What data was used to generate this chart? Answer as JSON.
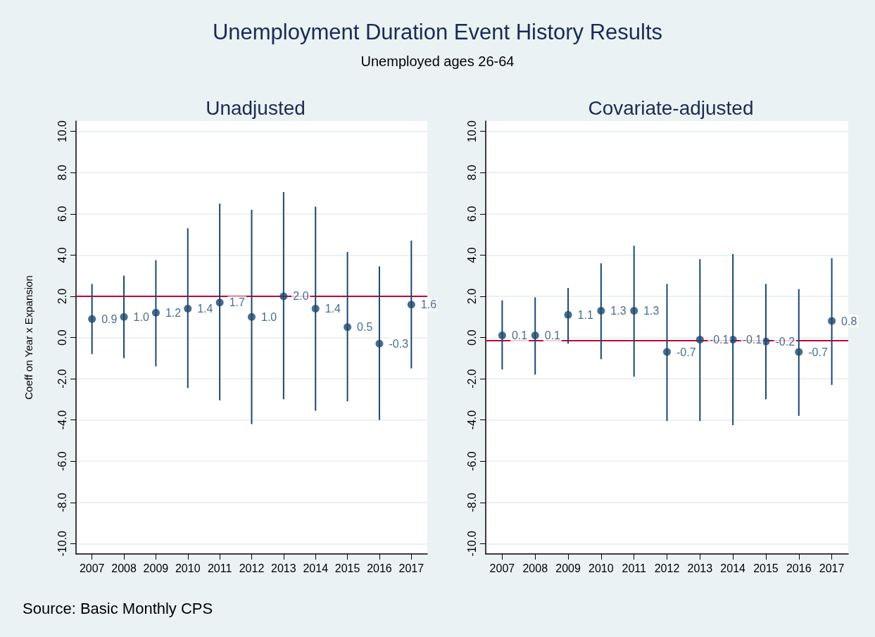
{
  "chart_data": [
    {
      "type": "scatter",
      "title": "Unadjusted",
      "ylabel": "Coeff on Year x Expansion",
      "annotations": [
        "Unemployment Duration Event History Results",
        "Unemployed ages 26-64",
        "Source: Basic Monthly CPS"
      ],
      "categories": [
        "2007",
        "2008",
        "2009",
        "2010",
        "2011",
        "2012",
        "2013",
        "2014",
        "2015",
        "2016",
        "2017"
      ],
      "values": [
        0.9,
        1.0,
        1.2,
        1.4,
        1.7,
        1.0,
        2.0,
        1.4,
        0.5,
        -0.3,
        1.6
      ],
      "value_labels": [
        "0.9",
        "1.0",
        "1.2",
        "1.4",
        "1.7",
        "1.0",
        "2.0",
        "1.4",
        "0.5",
        "-0.3",
        "1.6"
      ],
      "errors": [
        [
          -0.8,
          2.6
        ],
        [
          -1.0,
          3.0
        ],
        [
          -1.4,
          3.75
        ],
        [
          -2.45,
          5.3
        ],
        [
          -3.05,
          6.5
        ],
        [
          -4.2,
          6.2
        ],
        [
          -3.0,
          7.05
        ],
        [
          -3.55,
          6.35
        ],
        [
          -3.1,
          4.15
        ],
        [
          -4.0,
          3.45
        ],
        [
          -1.5,
          4.7
        ]
      ],
      "color": "#1a476f",
      "marker": "circle",
      "grid": "y",
      "ylim": [
        -10.5,
        10.5
      ],
      "yticks": [
        {
          "value": -10,
          "label": "-10.0"
        },
        {
          "value": -8,
          "label": "-8.0"
        },
        {
          "value": -6,
          "label": "-6.0"
        },
        {
          "value": -4,
          "label": "-4.0"
        },
        {
          "value": -2,
          "label": "-2.0"
        },
        {
          "value": 0,
          "label": "0.0"
        },
        {
          "value": 2,
          "label": "2.0"
        },
        {
          "value": 4,
          "label": "4.0"
        },
        {
          "value": 6,
          "label": "6.0"
        },
        {
          "value": 8,
          "label": "8.0"
        },
        {
          "value": 10,
          "label": "10.0"
        }
      ],
      "ref_lines": [
        {
          "axis": "y",
          "value": 2.0,
          "color": "#c10534"
        }
      ]
    },
    {
      "type": "scatter",
      "title": "Covariate-adjusted",
      "categories": [
        "2007",
        "2008",
        "2009",
        "2010",
        "2011",
        "2012",
        "2013",
        "2014",
        "2015",
        "2016",
        "2017"
      ],
      "values": [
        0.1,
        0.1,
        1.1,
        1.3,
        1.3,
        -0.7,
        -0.1,
        -0.1,
        -0.2,
        -0.7,
        0.8
      ],
      "value_labels": [
        "0.1",
        "0.1",
        "1.1",
        "1.3",
        "1.3",
        "-0.7",
        "-0.1",
        "-0.1",
        "-0.2",
        "-0.7",
        "0.8"
      ],
      "errors": [
        [
          -1.55,
          1.8
        ],
        [
          -1.8,
          1.95
        ],
        [
          -0.3,
          2.4
        ],
        [
          -1.05,
          3.6
        ],
        [
          -1.9,
          4.45
        ],
        [
          -4.05,
          2.6
        ],
        [
          -4.05,
          3.8
        ],
        [
          -4.25,
          4.05
        ],
        [
          -3.0,
          2.6
        ],
        [
          -3.8,
          2.35
        ],
        [
          -2.3,
          3.85
        ]
      ],
      "color": "#1a476f",
      "marker": "circle",
      "grid": "y",
      "ylim": [
        -10.5,
        10.5
      ],
      "yticks": [
        {
          "value": -10,
          "label": "-10.0"
        },
        {
          "value": -8,
          "label": "-8.0"
        },
        {
          "value": -6,
          "label": "-6.0"
        },
        {
          "value": -4,
          "label": "-4.0"
        },
        {
          "value": -2,
          "label": "-2.0"
        },
        {
          "value": 0,
          "label": "0.0"
        },
        {
          "value": 2,
          "label": "2.0"
        },
        {
          "value": 4,
          "label": "4.0"
        },
        {
          "value": 6,
          "label": "6.0"
        },
        {
          "value": 8,
          "label": "8.0"
        },
        {
          "value": 10,
          "label": "10.0"
        }
      ],
      "ref_lines": [
        {
          "axis": "y",
          "value": -0.15,
          "color": "#c10534"
        }
      ]
    }
  ]
}
